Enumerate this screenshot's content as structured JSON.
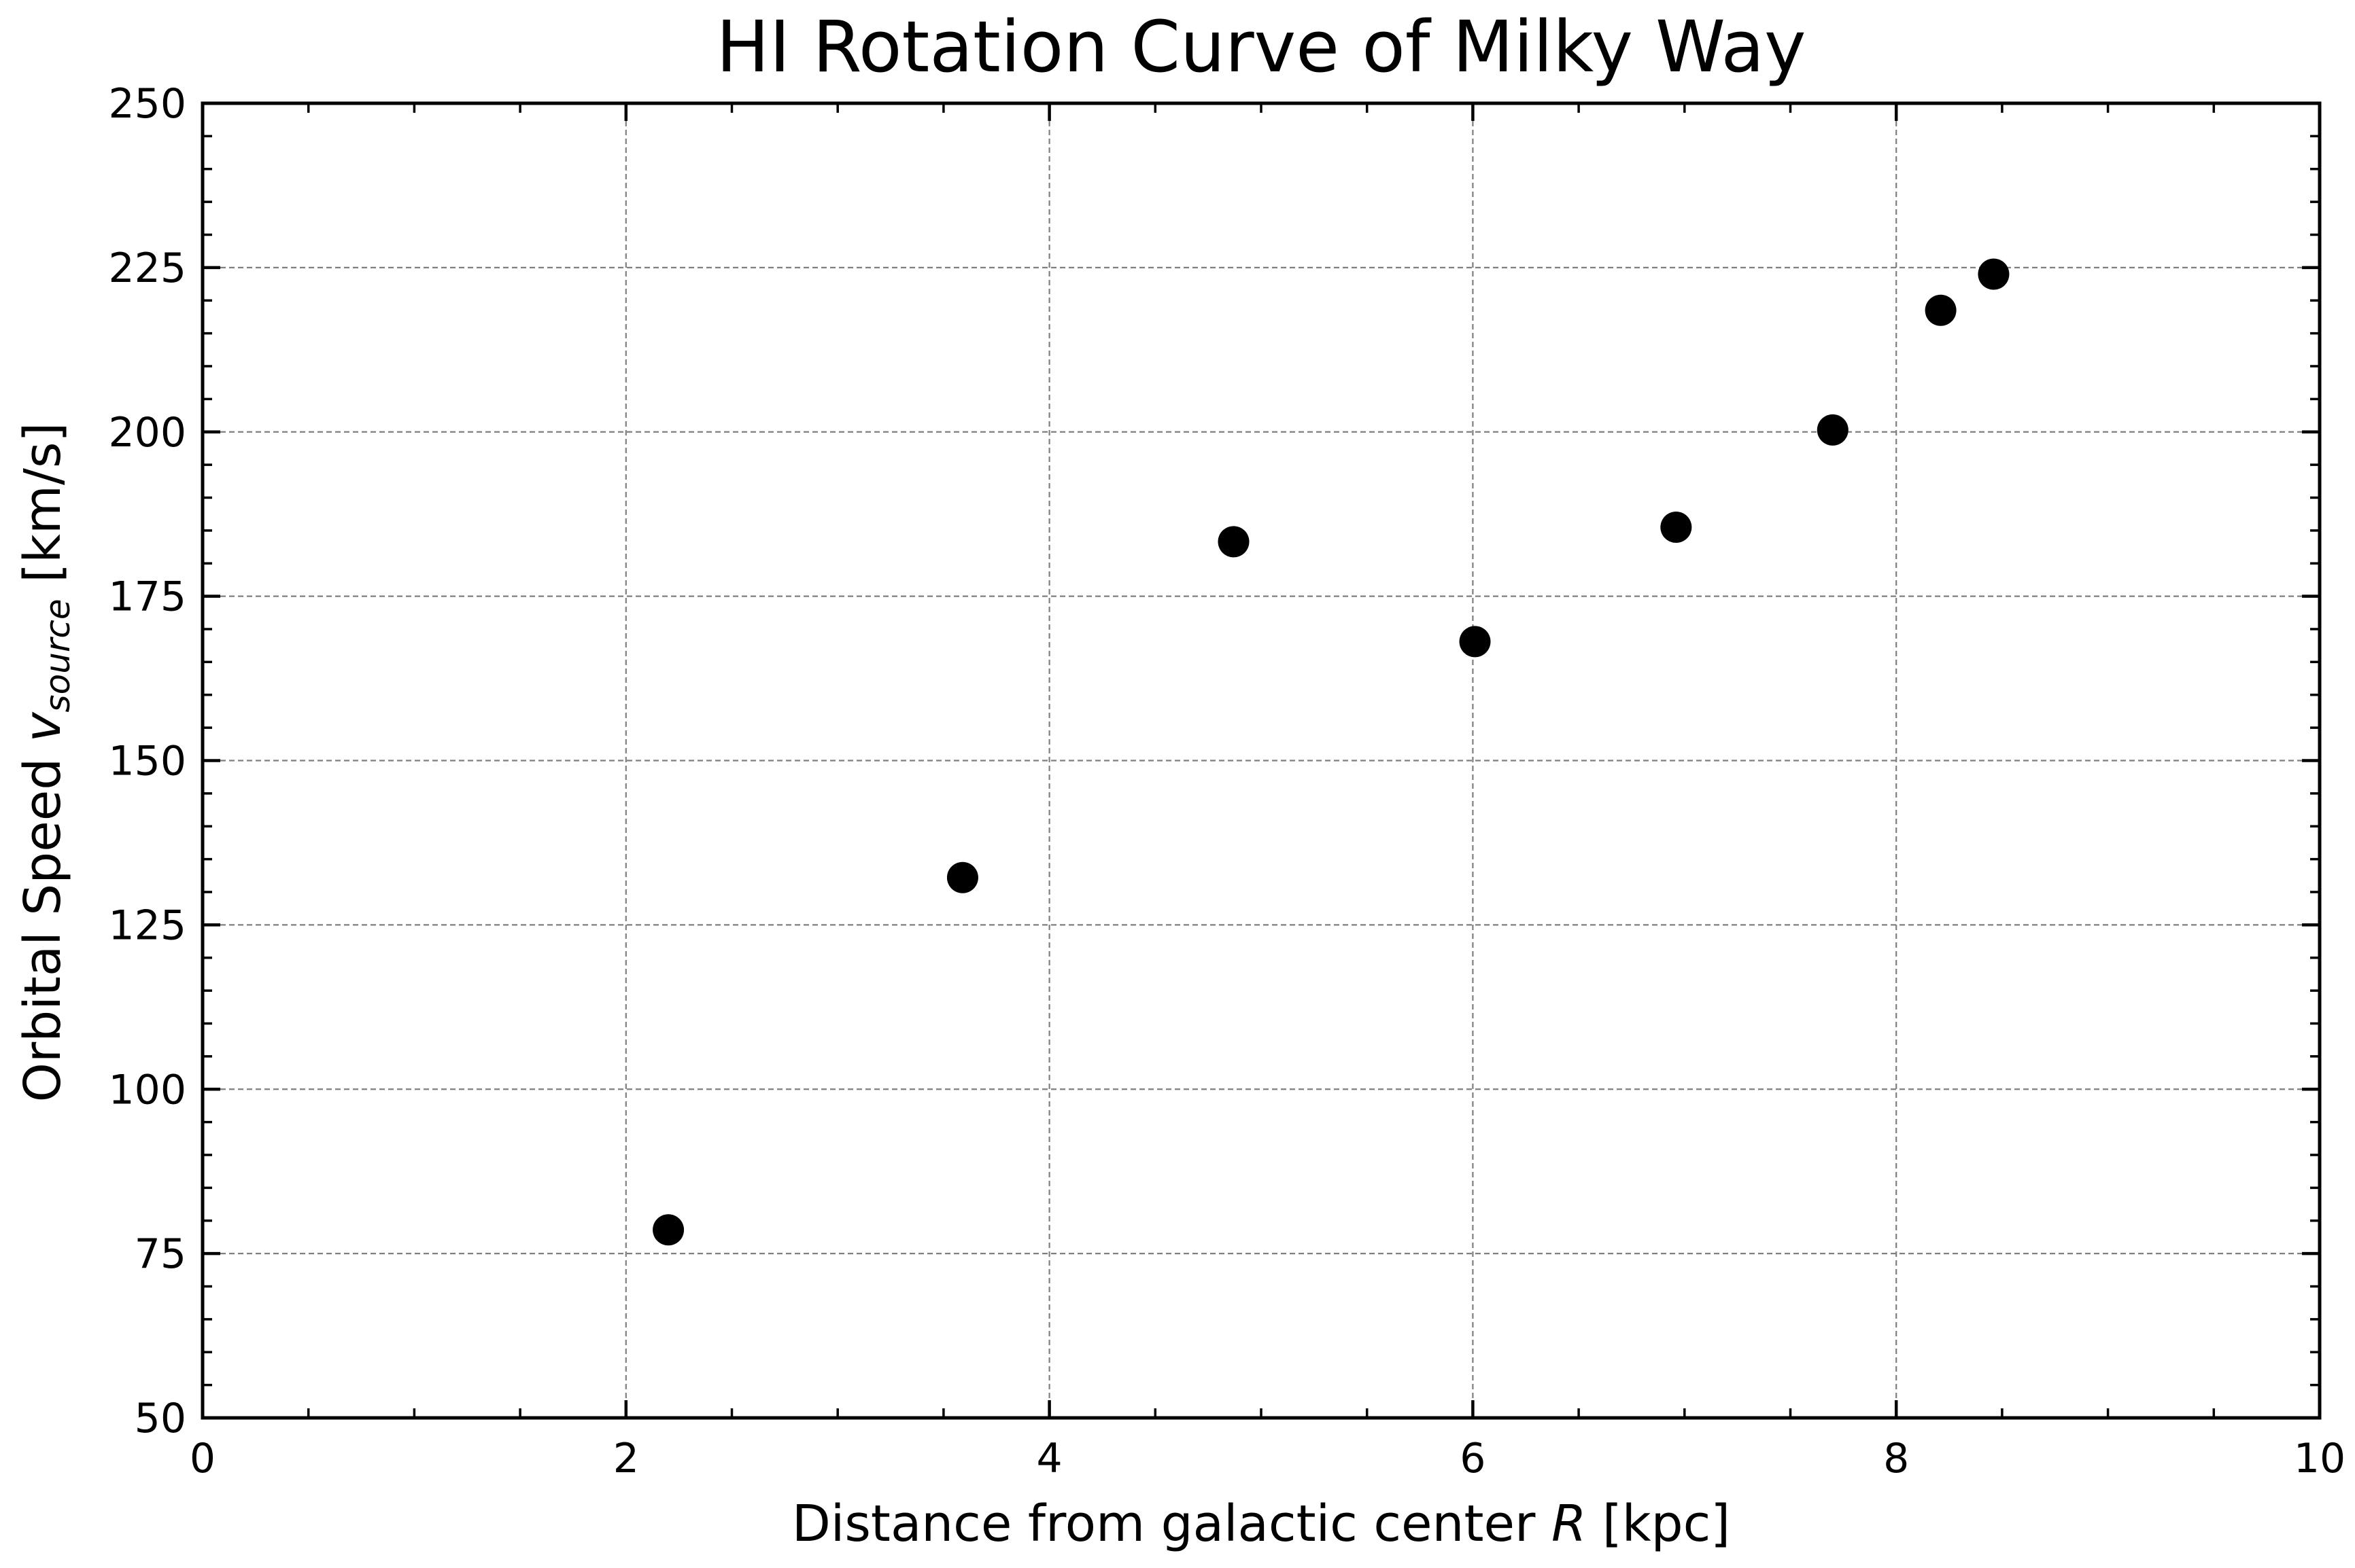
{
  "chart_data": {
    "type": "scatter",
    "title": "HI Rotation Curve of Milky Way",
    "xlabel": {
      "prefix": "Distance from galactic center ",
      "symbol": "R",
      "suffix": " [kpc]"
    },
    "ylabel": {
      "prefix": "Orbital Speed ",
      "symbol": "v",
      "subscript": "source",
      "suffix": " [km/s]"
    },
    "xlim": [
      0,
      10
    ],
    "ylim": [
      50,
      250
    ],
    "x_major_ticks": [
      0,
      2,
      4,
      6,
      8,
      10
    ],
    "x_tick_labels": [
      "0",
      "2",
      "4",
      "6",
      "8",
      "10"
    ],
    "x_minor_step": 0.5,
    "y_major_ticks": [
      50,
      75,
      100,
      125,
      150,
      175,
      200,
      225,
      250
    ],
    "y_tick_labels": [
      "50",
      "75",
      "100",
      "125",
      "150",
      "175",
      "200",
      "225",
      "250"
    ],
    "y_minor_step": 5,
    "grid": true,
    "marker_color": "#000000",
    "series": [
      {
        "x": [
          2.2,
          3.59,
          4.87,
          6.01,
          6.96,
          7.7,
          8.21,
          8.46
        ],
        "y": [
          78.6,
          132.2,
          183.3,
          168.1,
          185.5,
          200.3,
          218.5,
          224.0
        ]
      }
    ]
  }
}
